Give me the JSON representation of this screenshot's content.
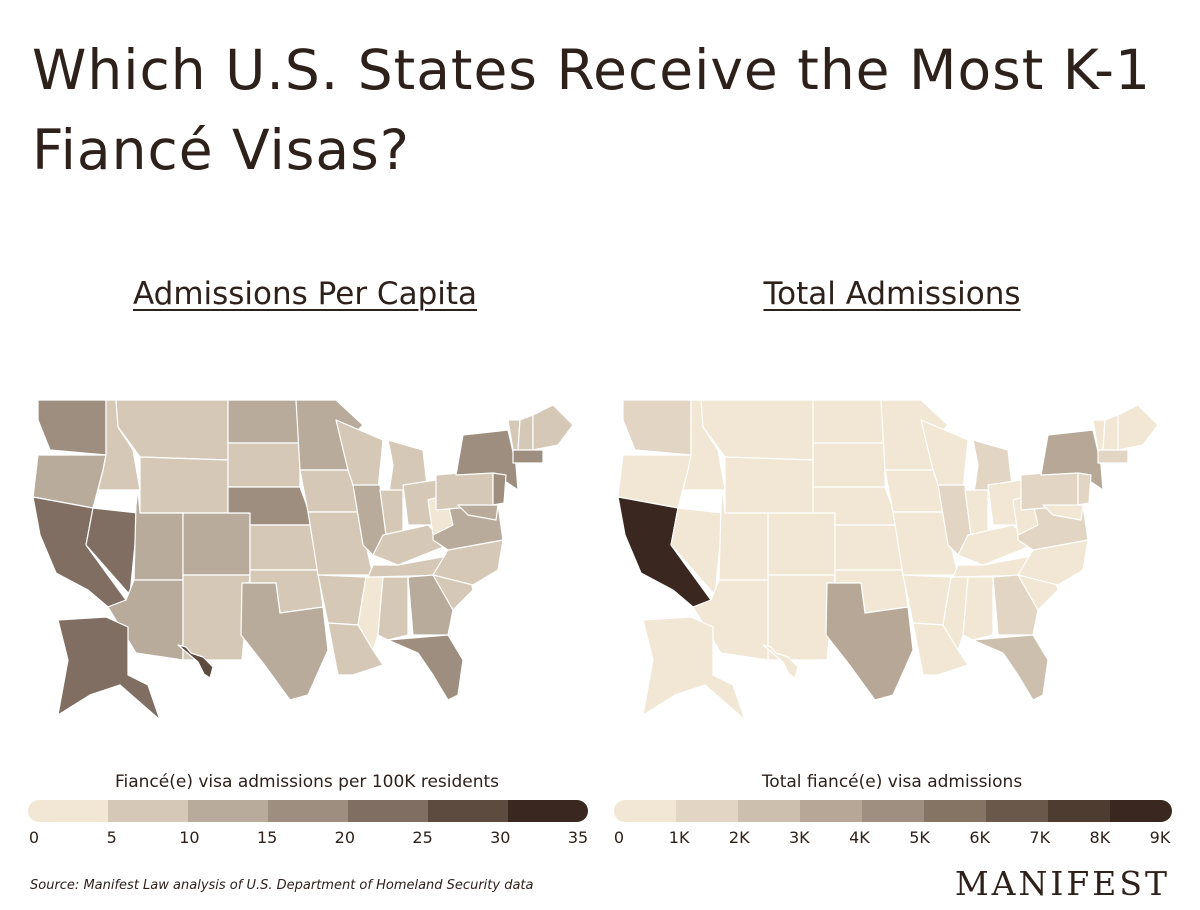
{
  "title": "Which U.S. States Receive the Most K-1 Fiancé Visas?",
  "maps": [
    {
      "id": "per-capita",
      "heading": "Admissions Per Capita",
      "legend_title": "Fiancé(e) visa admissions per 100K residents",
      "ticks": [
        "0",
        "5",
        "10",
        "15",
        "20",
        "25",
        "30",
        "35"
      ],
      "colors": [
        "#f2e6d4",
        "#d6c8b7",
        "#b9ab9b",
        "#9e8e7f",
        "#7f6e61",
        "#5e4b40",
        "#3a2820"
      ],
      "states": {
        "WA": 3,
        "OR": 2,
        "CA": 4,
        "NV": 4,
        "ID": 1,
        "MT": 1,
        "WY": 1,
        "UT": 2,
        "AZ": 2,
        "CO": 2,
        "NM": 1,
        "ND": 2,
        "SD": 1,
        "NE": 3,
        "KS": 1,
        "OK": 1,
        "TX": 2,
        "MN": 2,
        "IA": 1,
        "MO": 1,
        "AR": 1,
        "LA": 1,
        "WI": 1,
        "IL": 2,
        "MS": 0,
        "MI": 1,
        "IN": 1,
        "KY": 1,
        "TN": 1,
        "AL": 1,
        "OH": 1,
        "GA": 2,
        "FL": 3,
        "SC": 1,
        "NC": 1,
        "VA": 2,
        "WV": 0,
        "PA": 1,
        "NY": 3,
        "VT": 1,
        "NH": 1,
        "ME": 1,
        "MA": 3,
        "NJ": 3,
        "MD": 2,
        "AK": 4,
        "HI": 5
      }
    },
    {
      "id": "total",
      "heading": "Total Admissions",
      "legend_title": "Total fiancé(e) visa admissions",
      "ticks": [
        "0",
        "1K",
        "2K",
        "3K",
        "4K",
        "5K",
        "6K",
        "7K",
        "8K",
        "9K"
      ],
      "colors": [
        "#f2e6d4",
        "#e3d5c4",
        "#cdbfae",
        "#b6a797",
        "#9f8f80",
        "#857464",
        "#6a584b",
        "#4f3c31",
        "#3a2820"
      ],
      "states": {
        "WA": 1,
        "OR": 0,
        "CA": 8,
        "NV": 0,
        "ID": 0,
        "MT": 0,
        "WY": 0,
        "UT": 0,
        "AZ": 0,
        "CO": 0,
        "NM": 0,
        "ND": 0,
        "SD": 0,
        "NE": 0,
        "KS": 0,
        "OK": 0,
        "TX": 3,
        "MN": 0,
        "IA": 0,
        "MO": 0,
        "AR": 0,
        "LA": 0,
        "WI": 0,
        "IL": 1,
        "MS": 0,
        "MI": 1,
        "IN": 0,
        "KY": 0,
        "TN": 0,
        "AL": 0,
        "OH": 0,
        "GA": 1,
        "FL": 2,
        "SC": 0,
        "NC": 0,
        "VA": 1,
        "WV": 0,
        "PA": 1,
        "NY": 3,
        "VT": 0,
        "NH": 0,
        "ME": 0,
        "MA": 1,
        "NJ": 1,
        "MD": 0,
        "AK": 0,
        "HI": 0
      }
    }
  ],
  "source": "Source: Manifest Law analysis of U.S. Department of Homeland Security data",
  "brand": "MANIFEST"
}
